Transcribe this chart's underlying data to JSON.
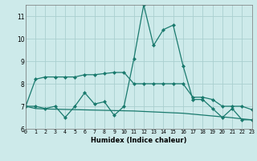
{
  "x": [
    0,
    1,
    2,
    3,
    4,
    5,
    6,
    7,
    8,
    9,
    10,
    11,
    12,
    13,
    14,
    15,
    16,
    17,
    18,
    19,
    20,
    21,
    22,
    23
  ],
  "line1": [
    7.0,
    8.2,
    8.3,
    8.3,
    8.3,
    8.3,
    8.4,
    8.4,
    8.45,
    8.5,
    8.5,
    8.0,
    8.0,
    8.0,
    8.0,
    8.0,
    8.0,
    7.4,
    7.4,
    7.3,
    7.0,
    7.0,
    7.0,
    6.85
  ],
  "line2": [
    7.0,
    7.0,
    6.9,
    7.0,
    6.5,
    7.0,
    7.6,
    7.1,
    7.2,
    6.6,
    7.0,
    9.1,
    11.5,
    9.7,
    10.4,
    10.6,
    8.8,
    7.3,
    7.3,
    6.9,
    6.5,
    6.9,
    6.4,
    6.4
  ],
  "line3": [
    7.0,
    6.9,
    6.88,
    6.87,
    6.86,
    6.85,
    6.84,
    6.83,
    6.82,
    6.81,
    6.8,
    6.79,
    6.77,
    6.75,
    6.73,
    6.71,
    6.69,
    6.65,
    6.61,
    6.57,
    6.53,
    6.49,
    6.44,
    6.4
  ],
  "color": "#1a7a6e",
  "bg_color": "#cdeaea",
  "grid_color": "#aacfcf",
  "xlabel": "Humidex (Indice chaleur)",
  "yticks": [
    6,
    7,
    8,
    9,
    10,
    11
  ],
  "xticks": [
    0,
    1,
    2,
    3,
    4,
    5,
    6,
    7,
    8,
    9,
    10,
    11,
    12,
    13,
    14,
    15,
    16,
    17,
    18,
    19,
    20,
    21,
    22,
    23
  ],
  "xlim": [
    0,
    23
  ],
  "ylim": [
    6.0,
    11.5
  ]
}
